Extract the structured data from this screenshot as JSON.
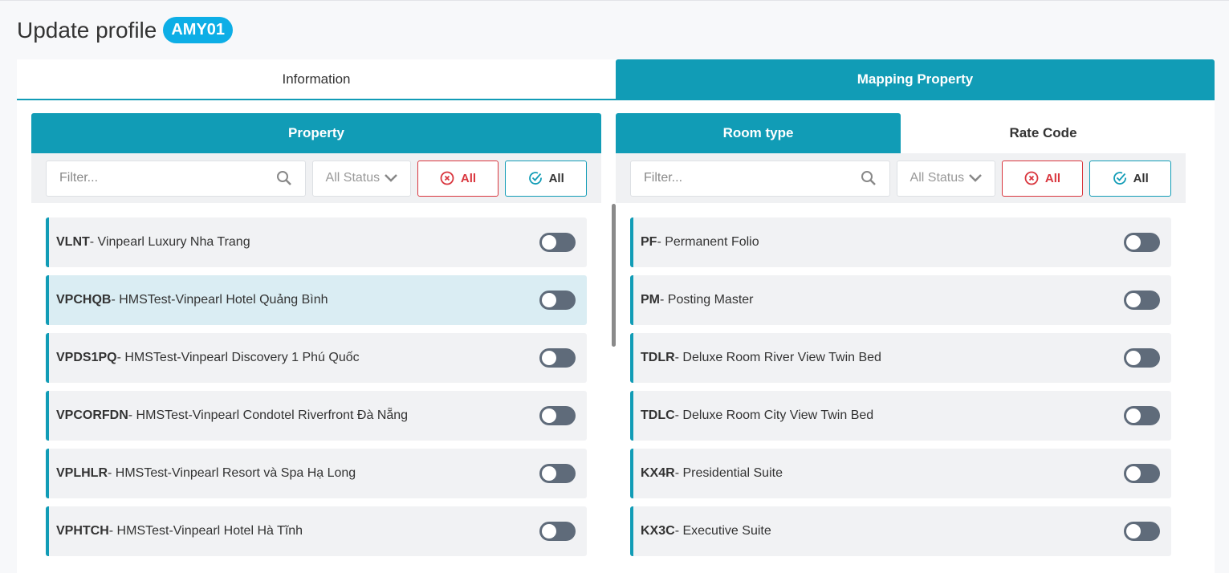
{
  "header": {
    "title": "Update profile",
    "badge": "AMY01"
  },
  "tabs": [
    {
      "label": "Information"
    },
    {
      "label": "Mapping Property"
    }
  ],
  "property": {
    "title": "Property",
    "filter_placeholder": "Filter...",
    "status": "All Status",
    "deselect_all": "All",
    "select_all": "All",
    "items": [
      {
        "code": "VLNT",
        "name": "- Vinpearl Luxury Nha Trang",
        "on": false
      },
      {
        "code": "VPCHQB",
        "name": "- HMSTest-Vinpearl Hotel Quảng Bình",
        "on": false
      },
      {
        "code": "VPDS1PQ",
        "name": "- HMSTest-Vinpearl Discovery 1 Phú Quốc",
        "on": false
      },
      {
        "code": "VPCORFDN",
        "name": "- HMSTest-Vinpearl Condotel Riverfront Đà Nẵng",
        "on": false
      },
      {
        "code": "VPLHLR",
        "name": "- HMSTest-Vinpearl Resort và Spa Hạ Long",
        "on": false
      },
      {
        "code": "VPHTCH",
        "name": "- HMSTest-Vinpearl Hotel Hà Tĩnh",
        "on": false
      }
    ]
  },
  "mapping": {
    "tabs": [
      "Room type",
      "Rate Code"
    ],
    "filter_placeholder": "Filter...",
    "status": "All Status",
    "deselect_all": "All",
    "select_all": "All",
    "items": [
      {
        "code": "PF",
        "name": "- Permanent Folio",
        "on": false
      },
      {
        "code": "PM",
        "name": "- Posting Master",
        "on": false
      },
      {
        "code": "TDLR",
        "name": "- Deluxe Room River View Twin Bed",
        "on": false
      },
      {
        "code": "TDLC",
        "name": "- Deluxe Room City View Twin Bed",
        "on": false
      },
      {
        "code": "KX4R",
        "name": "- Presidential Suite",
        "on": false
      },
      {
        "code": "KX3C",
        "name": "- Executive Suite",
        "on": false
      }
    ]
  },
  "colors": {
    "primary": "#119cb6",
    "badge": "#0daee6",
    "danger": "#d9363e"
  }
}
